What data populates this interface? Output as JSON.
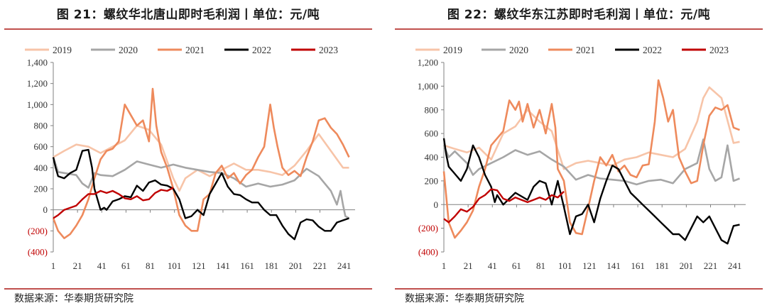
{
  "charts": [
    {
      "title": "图 21：螺纹华北唐山即时毛利润丨单位：元/吨",
      "source": "数据来源：华泰期货研究院"
    },
    {
      "title": "图 22：螺纹华东江苏即时毛利润丨单位：元/吨",
      "source": "数据来源：华泰期货研究院"
    }
  ],
  "chart_data": [
    {
      "type": "line",
      "title": "螺纹华北唐山即时毛利润",
      "unit": "元/吨",
      "ylim": [
        -400,
        1400
      ],
      "y_ticks": [
        -400,
        -200,
        0,
        200,
        400,
        600,
        800,
        1000,
        1200,
        1400
      ],
      "y_tick_labels": [
        "(400)",
        "(200)",
        "0",
        "200",
        "400",
        "600",
        "800",
        "1,000",
        "1,200",
        "1,400"
      ],
      "xlim": [
        1,
        250
      ],
      "x_ticks": [
        1,
        21,
        41,
        61,
        81,
        101,
        121,
        141,
        161,
        181,
        201,
        221,
        241
      ],
      "legend": "top",
      "grid": false,
      "series": [
        {
          "name": "2019",
          "color": "#f7c4a8",
          "x": [
            1,
            10,
            20,
            30,
            40,
            50,
            60,
            70,
            80,
            90,
            100,
            105,
            110,
            120,
            130,
            140,
            150,
            160,
            170,
            180,
            190,
            200,
            210,
            220,
            230,
            240,
            245
          ],
          "values": [
            500,
            560,
            620,
            600,
            540,
            600,
            660,
            800,
            760,
            620,
            300,
            180,
            300,
            380,
            320,
            380,
            440,
            380,
            380,
            360,
            330,
            420,
            560,
            720,
            560,
            400,
            400
          ]
        },
        {
          "name": "2020",
          "color": "#a6a6a6",
          "x": [
            1,
            5,
            10,
            20,
            25,
            30,
            35,
            40,
            50,
            60,
            70,
            80,
            90,
            100,
            110,
            120,
            130,
            140,
            150,
            160,
            170,
            180,
            190,
            200,
            210,
            220,
            225,
            230,
            235,
            238,
            240,
            242,
            245
          ],
          "values": [
            500,
            360,
            350,
            330,
            250,
            210,
            350,
            330,
            320,
            380,
            460,
            430,
            400,
            430,
            400,
            380,
            360,
            350,
            300,
            220,
            250,
            220,
            240,
            280,
            390,
            320,
            250,
            180,
            50,
            180,
            50,
            -60,
            -80
          ]
        },
        {
          "name": "2021",
          "color": "#ee8a5c",
          "x": [
            1,
            5,
            10,
            15,
            20,
            25,
            30,
            35,
            40,
            45,
            50,
            55,
            60,
            65,
            70,
            75,
            80,
            83,
            86,
            90,
            95,
            100,
            105,
            110,
            115,
            120,
            125,
            130,
            135,
            140,
            145,
            150,
            155,
            160,
            165,
            170,
            175,
            180,
            183,
            186,
            190,
            195,
            200,
            205,
            210,
            215,
            220,
            225,
            230,
            235,
            240,
            245
          ],
          "values": [
            -80,
            -200,
            -270,
            -230,
            -150,
            -50,
            100,
            300,
            480,
            560,
            580,
            650,
            1000,
            900,
            800,
            850,
            650,
            1150,
            800,
            550,
            400,
            200,
            -50,
            -150,
            -200,
            -200,
            100,
            150,
            350,
            420,
            300,
            350,
            250,
            330,
            380,
            500,
            600,
            1000,
            780,
            600,
            400,
            330,
            370,
            320,
            500,
            650,
            850,
            870,
            780,
            720,
            620,
            500
          ]
        },
        {
          "name": "2022",
          "color": "#000000",
          "x": [
            1,
            3,
            5,
            10,
            15,
            20,
            25,
            30,
            33,
            35,
            40,
            43,
            45,
            50,
            55,
            60,
            65,
            70,
            75,
            80,
            85,
            90,
            95,
            100,
            105,
            110,
            115,
            120,
            125,
            130,
            135,
            140,
            145,
            150,
            155,
            160,
            165,
            170,
            175,
            180,
            185,
            190,
            195,
            200,
            205,
            210,
            215,
            220,
            225,
            230,
            235,
            240,
            245
          ],
          "values": [
            500,
            400,
            320,
            300,
            350,
            380,
            560,
            570,
            400,
            200,
            0,
            20,
            0,
            80,
            100,
            130,
            120,
            230,
            180,
            260,
            280,
            240,
            230,
            200,
            100,
            -80,
            -60,
            0,
            -50,
            150,
            250,
            350,
            220,
            150,
            140,
            100,
            70,
            70,
            0,
            -50,
            -50,
            -150,
            -230,
            -280,
            -120,
            -90,
            -100,
            -160,
            -200,
            -200,
            -120,
            -100,
            -80
          ]
        },
        {
          "name": "2023",
          "color": "#c00000",
          "x": [
            1,
            5,
            10,
            15,
            20,
            25,
            30,
            35,
            40,
            45,
            50,
            55,
            60,
            65,
            70,
            75,
            80,
            85,
            90,
            95,
            100
          ],
          "values": [
            -80,
            -50,
            0,
            20,
            40,
            100,
            150,
            150,
            180,
            160,
            180,
            150,
            110,
            100,
            130,
            90,
            100,
            160,
            190,
            180,
            210
          ]
        }
      ]
    },
    {
      "type": "line",
      "title": "螺纹华东江苏即时毛利润",
      "unit": "元/吨",
      "ylim": [
        -400,
        1200
      ],
      "y_ticks": [
        -400,
        -200,
        0,
        200,
        400,
        600,
        800,
        1000,
        1200
      ],
      "y_tick_labels": [
        "(400)",
        "(200)",
        "0",
        "200",
        "400",
        "600",
        "800",
        "1,000",
        "1,200"
      ],
      "xlim": [
        1,
        250
      ],
      "x_ticks": [
        1,
        21,
        41,
        61,
        81,
        101,
        121,
        141,
        161,
        181,
        201,
        221,
        241
      ],
      "legend": "top",
      "grid": false,
      "series": [
        {
          "name": "2019",
          "color": "#f7c4a8",
          "x": [
            1,
            10,
            20,
            30,
            40,
            50,
            60,
            70,
            80,
            90,
            100,
            110,
            120,
            130,
            140,
            150,
            160,
            170,
            180,
            190,
            200,
            210,
            215,
            220,
            230,
            240,
            245
          ],
          "values": [
            500,
            470,
            440,
            480,
            380,
            600,
            660,
            800,
            700,
            620,
            300,
            350,
            370,
            350,
            330,
            380,
            400,
            440,
            420,
            400,
            470,
            700,
            900,
            990,
            900,
            520,
            530
          ]
        },
        {
          "name": "2020",
          "color": "#a6a6a6",
          "x": [
            1,
            5,
            10,
            20,
            25,
            30,
            40,
            50,
            60,
            70,
            80,
            90,
            100,
            110,
            120,
            130,
            140,
            150,
            160,
            170,
            180,
            190,
            200,
            210,
            215,
            220,
            225,
            230,
            235,
            240,
            245
          ],
          "values": [
            500,
            400,
            450,
            350,
            250,
            300,
            350,
            400,
            460,
            420,
            450,
            380,
            320,
            210,
            250,
            220,
            210,
            200,
            170,
            200,
            210,
            180,
            300,
            350,
            550,
            300,
            200,
            230,
            500,
            200,
            220
          ]
        },
        {
          "name": "2021",
          "color": "#ee8a5c",
          "x": [
            1,
            5,
            10,
            15,
            20,
            25,
            30,
            35,
            40,
            45,
            50,
            55,
            60,
            63,
            66,
            70,
            75,
            80,
            85,
            90,
            93,
            95,
            100,
            105,
            110,
            115,
            120,
            125,
            130,
            135,
            140,
            145,
            150,
            155,
            160,
            165,
            170,
            175,
            178,
            182,
            186,
            190,
            195,
            200,
            205,
            210,
            215,
            220,
            225,
            230,
            235,
            240,
            245
          ],
          "values": [
            280,
            -150,
            -280,
            -220,
            -150,
            -50,
            150,
            300,
            500,
            560,
            620,
            880,
            800,
            870,
            700,
            850,
            650,
            800,
            600,
            850,
            650,
            300,
            200,
            -150,
            -240,
            -250,
            -30,
            200,
            400,
            330,
            420,
            280,
            330,
            250,
            230,
            330,
            340,
            700,
            1050,
            900,
            700,
            800,
            400,
            280,
            180,
            200,
            500,
            750,
            820,
            800,
            840,
            650,
            630
          ]
        },
        {
          "name": "2022",
          "color": "#000000",
          "x": [
            1,
            3,
            5,
            10,
            15,
            20,
            25,
            30,
            35,
            40,
            43,
            45,
            50,
            55,
            60,
            65,
            70,
            75,
            80,
            85,
            90,
            95,
            100,
            105,
            110,
            115,
            120,
            125,
            130,
            135,
            140,
            145,
            150,
            155,
            160,
            165,
            170,
            175,
            180,
            185,
            190,
            195,
            200,
            205,
            210,
            215,
            220,
            225,
            230,
            235,
            240,
            245
          ],
          "values": [
            560,
            420,
            320,
            260,
            200,
            300,
            500,
            400,
            250,
            150,
            20,
            80,
            0,
            50,
            100,
            70,
            40,
            150,
            200,
            180,
            0,
            200,
            -20,
            -250,
            -100,
            -80,
            0,
            -150,
            50,
            200,
            330,
            300,
            200,
            100,
            50,
            0,
            -50,
            -100,
            -150,
            -200,
            -250,
            -250,
            -300,
            -200,
            -100,
            -150,
            -100,
            -200,
            -300,
            -330,
            -180,
            -170
          ]
        },
        {
          "name": "2023",
          "color": "#c00000",
          "x": [
            1,
            5,
            10,
            15,
            20,
            25,
            30,
            35,
            40,
            45,
            50,
            55,
            60,
            65,
            70,
            75,
            80,
            85,
            90,
            95,
            100
          ],
          "values": [
            -120,
            -150,
            -100,
            -40,
            -60,
            -20,
            50,
            80,
            130,
            120,
            50,
            30,
            60,
            40,
            20,
            40,
            60,
            40,
            80,
            60,
            110
          ]
        }
      ]
    }
  ]
}
